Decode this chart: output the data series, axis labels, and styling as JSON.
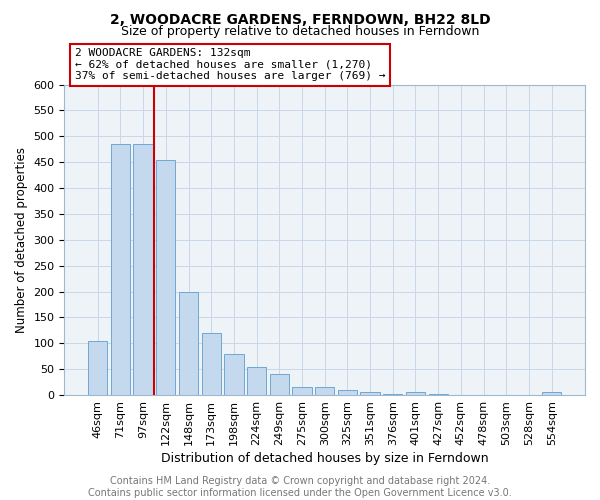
{
  "title": "2, WOODACRE GARDENS, FERNDOWN, BH22 8LD",
  "subtitle": "Size of property relative to detached houses in Ferndown",
  "xlabel": "Distribution of detached houses by size in Ferndown",
  "ylabel": "Number of detached properties",
  "categories": [
    "46sqm",
    "71sqm",
    "97sqm",
    "122sqm",
    "148sqm",
    "173sqm",
    "198sqm",
    "224sqm",
    "249sqm",
    "275sqm",
    "300sqm",
    "325sqm",
    "351sqm",
    "376sqm",
    "401sqm",
    "427sqm",
    "452sqm",
    "478sqm",
    "503sqm",
    "528sqm",
    "554sqm"
  ],
  "values": [
    105,
    485,
    485,
    455,
    200,
    120,
    80,
    55,
    40,
    15,
    15,
    10,
    5,
    2,
    5,
    2,
    1,
    1,
    1,
    1,
    5
  ],
  "bar_color": "#c5d9ee",
  "bar_edge_color": "#6fa8d4",
  "annotation_text": "2 WOODACRE GARDENS: 132sqm\n← 62% of detached houses are smaller (1,270)\n37% of semi-detached houses are larger (769) →",
  "annotation_box_color": "#ffffff",
  "annotation_box_edge_color": "#cc0000",
  "red_line_color": "#cc0000",
  "red_line_x": 2.5,
  "footer_text": "Contains HM Land Registry data © Crown copyright and database right 2024.\nContains public sector information licensed under the Open Government Licence v3.0.",
  "ylim": [
    0,
    600
  ],
  "yticks": [
    0,
    50,
    100,
    150,
    200,
    250,
    300,
    350,
    400,
    450,
    500,
    550,
    600
  ],
  "title_fontsize": 10,
  "subtitle_fontsize": 9,
  "xlabel_fontsize": 9,
  "ylabel_fontsize": 8.5,
  "annotation_fontsize": 8,
  "footer_fontsize": 7,
  "tick_fontsize": 8
}
